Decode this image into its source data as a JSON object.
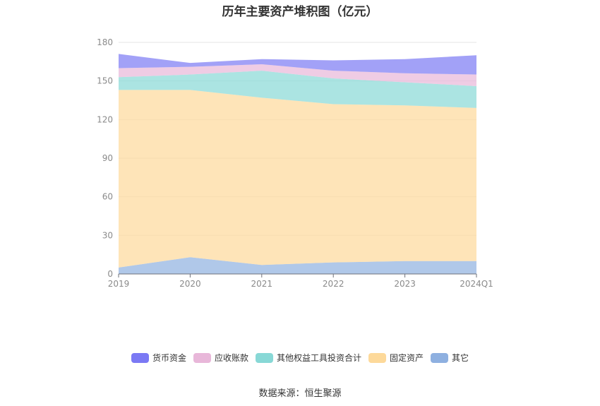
{
  "page": {
    "title": "历年主要资产堆积图（亿元）",
    "source": "数据来源：恒生聚源"
  },
  "chart_data": {
    "type": "area",
    "stacked": true,
    "title": "历年主要资产堆积图（亿元）",
    "categories": [
      "2019",
      "2020",
      "2021",
      "2022",
      "2023",
      "2024Q1"
    ],
    "ylim": [
      0,
      180
    ],
    "yticks": [
      0,
      30,
      60,
      90,
      120,
      150,
      180
    ],
    "grid": true,
    "legend_position": "bottom",
    "series": [
      {
        "name": "其它",
        "color": "#8eb0e0",
        "values": [
          5,
          13,
          7,
          9,
          10,
          10
        ]
      },
      {
        "name": "固定资产",
        "color": "#fdd99a",
        "values": [
          138,
          130,
          130,
          123,
          121,
          119
        ]
      },
      {
        "name": "其他权益工具投资合计",
        "color": "#88d8d6",
        "values": [
          10,
          12,
          21,
          20,
          18,
          17
        ]
      },
      {
        "name": "应收账款",
        "color": "#e8b7d9",
        "values": [
          7,
          6,
          5,
          6,
          7,
          9
        ]
      },
      {
        "name": "货币资金",
        "color": "#7b79f4",
        "values": [
          11,
          3,
          4,
          8,
          11,
          15
        ]
      }
    ],
    "legend_order": [
      "货币资金",
      "应收账款",
      "其他权益工具投资合计",
      "固定资产",
      "其它"
    ]
  }
}
